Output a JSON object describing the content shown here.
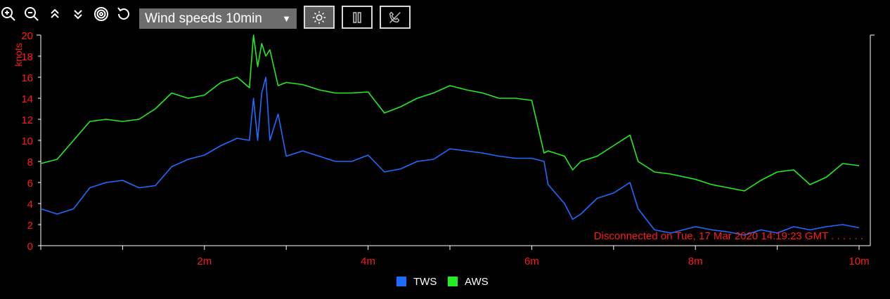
{
  "toolbar": {
    "icons": [
      "zoom-in-icon",
      "zoom-out-icon",
      "chevrons-up-icon",
      "chevrons-down-icon",
      "target-icon",
      "reset-icon"
    ],
    "select_value": "Wind speeds 10min",
    "buttons": [
      "sun-icon",
      "pause-icon",
      "disconnected-phone-icon"
    ]
  },
  "status": {
    "text": "Disconnected on Tue, 17 Mar 2020 14:19:23 GMT . . . . . .",
    "color": "#ff1a1a"
  },
  "colors": {
    "axis": "#ffffff",
    "labels": "#ff1a1a",
    "tws": "#1e6cff",
    "aws": "#22ee22"
  },
  "chart_data": {
    "type": "line",
    "ylabel": "knots",
    "xlabel": "",
    "ylim": [
      0,
      20
    ],
    "xlim": [
      0,
      10
    ],
    "y_ticks": [
      "0",
      "2",
      "4",
      "6",
      "8",
      "10",
      "12",
      "14",
      "16",
      "18",
      "20"
    ],
    "x_ticks": [
      "2m",
      "4m",
      "6m",
      "8m",
      "10m"
    ],
    "legend": {
      "position": "bottom-center",
      "entries": [
        "TWS",
        "AWS"
      ]
    },
    "series": [
      {
        "name": "TWS",
        "color": "#1e6cff",
        "x": [
          0,
          0.2,
          0.4,
          0.6,
          0.8,
          1.0,
          1.2,
          1.4,
          1.6,
          1.8,
          2.0,
          2.2,
          2.4,
          2.55,
          2.6,
          2.65,
          2.7,
          2.75,
          2.8,
          2.9,
          3.0,
          3.2,
          3.4,
          3.6,
          3.8,
          4.0,
          4.2,
          4.4,
          4.6,
          4.8,
          5.0,
          5.2,
          5.4,
          5.6,
          5.8,
          6.0,
          6.15,
          6.2,
          6.4,
          6.5,
          6.6,
          6.8,
          7.0,
          7.2,
          7.3,
          7.5,
          7.7,
          8.0,
          8.2,
          8.4,
          8.6,
          8.8,
          9.0,
          9.2,
          9.4,
          9.6,
          9.8,
          10.0
        ],
        "values": [
          3.5,
          3.0,
          3.5,
          5.5,
          6.0,
          6.2,
          5.5,
          5.7,
          7.5,
          8.2,
          8.6,
          9.5,
          10.2,
          10.0,
          14.0,
          10.0,
          14.5,
          16.0,
          10.0,
          12.5,
          8.5,
          9.0,
          8.5,
          8.0,
          8.0,
          8.6,
          7.0,
          7.3,
          8.0,
          8.2,
          9.2,
          9.0,
          8.8,
          8.5,
          8.3,
          8.3,
          8.0,
          5.8,
          4.0,
          2.5,
          3.0,
          4.5,
          5.0,
          6.0,
          3.5,
          1.5,
          1.2,
          1.8,
          1.5,
          1.3,
          1.0,
          1.5,
          1.2,
          1.8,
          1.5,
          1.8,
          2.0,
          1.7
        ]
      },
      {
        "name": "AWS",
        "color": "#22ee22",
        "x": [
          0,
          0.2,
          0.4,
          0.6,
          0.8,
          1.0,
          1.2,
          1.4,
          1.6,
          1.8,
          2.0,
          2.2,
          2.4,
          2.55,
          2.6,
          2.65,
          2.7,
          2.75,
          2.8,
          2.9,
          3.0,
          3.2,
          3.4,
          3.6,
          3.8,
          4.0,
          4.2,
          4.4,
          4.6,
          4.8,
          5.0,
          5.2,
          5.4,
          5.6,
          5.8,
          6.0,
          6.15,
          6.2,
          6.4,
          6.5,
          6.6,
          6.8,
          7.0,
          7.2,
          7.3,
          7.5,
          7.7,
          8.0,
          8.2,
          8.4,
          8.6,
          8.8,
          9.0,
          9.2,
          9.4,
          9.6,
          9.8,
          10.0
        ],
        "values": [
          7.8,
          8.2,
          10.0,
          11.8,
          12.0,
          11.8,
          12.0,
          13.0,
          14.5,
          14.0,
          14.3,
          15.5,
          16.0,
          15.0,
          20.0,
          17.0,
          19.2,
          18.0,
          18.6,
          15.2,
          15.5,
          15.3,
          14.8,
          14.5,
          14.5,
          14.6,
          12.6,
          13.2,
          14.0,
          14.5,
          15.2,
          14.8,
          14.5,
          14.0,
          14.0,
          13.8,
          8.8,
          9.0,
          8.5,
          7.2,
          8.0,
          8.5,
          9.5,
          10.5,
          8.0,
          7.0,
          6.8,
          6.3,
          5.8,
          5.5,
          5.2,
          6.2,
          7.0,
          7.2,
          5.8,
          6.5,
          7.8,
          7.6
        ]
      }
    ]
  }
}
